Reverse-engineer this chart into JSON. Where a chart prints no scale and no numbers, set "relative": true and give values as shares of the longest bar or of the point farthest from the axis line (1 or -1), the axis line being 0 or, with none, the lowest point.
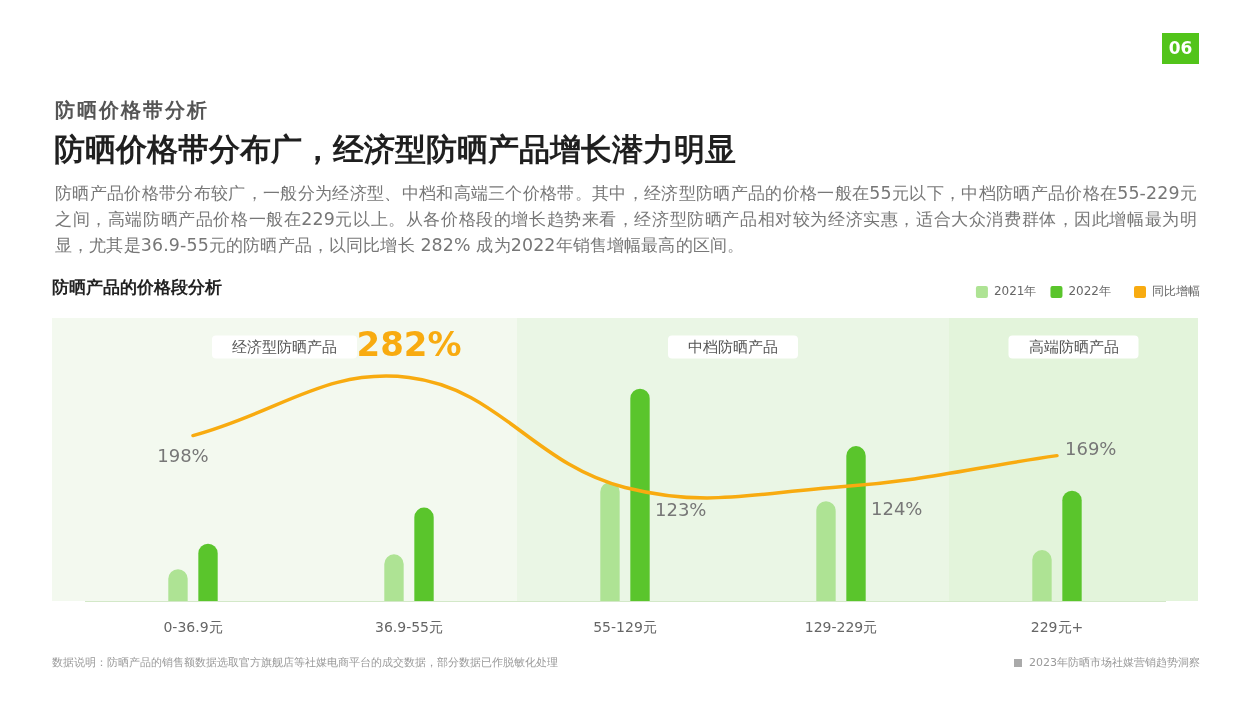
{
  "chart_data": [
    {
      "type": "bar",
      "title": "防晒价格带分布广，经济型防晒产品增长潜力明显",
      "subtitle": "防晒产品价格带分布较广，一般分为经济型、中档和高端三个价格带。其中，经济型防晒产品的价格一般在55元以下，中档防晒产品价格在55-229元之间，高端防晒产品价格一般在229元以上。从各价格段的增长趋势来看，经济型防晒产品相对较为经济实惠，适合大众消费群体，因此增幅最为明显，尤其是36.9-55元的防晒产品，以同比增长 282% 成为2022年销售增幅最高的区间。",
      "annotations": [
        "防晒价格带分析",
        "防晒产品的价格段分析",
        "06",
        "数据说明：防晒产品的销售额数据选取官方旗舰店等社媒电商平台的成交数据，部分数据已作脱敏化处理",
        "2023年防晒市场社媒营销趋势洞察"
      ],
      "categories": [
        "0-36.9元",
        "36.9-55元",
        "55-129元",
        "129-229元",
        "229元+"
      ],
      "relative": true,
      "series": [
        {
          "name": "2021年",
          "color": "#aee394",
          "values": [
            0.15,
            0.22,
            0.56,
            0.47,
            0.24
          ]
        },
        {
          "name": "2022年",
          "color": "#5ac52c",
          "values": [
            0.27,
            0.44,
            1,
            0.73,
            0.52
          ]
        }
      ],
      "bands": [
        {
          "axis": "x",
          "from": "0-36.9元",
          "to": "36.9-55元",
          "label": "经济型防晒产品",
          "color": "#f3f9ef"
        },
        {
          "axis": "x",
          "from": "55-129元",
          "to": "129-229元",
          "label": "中档防晒产品",
          "color": "#eaf6e5"
        },
        {
          "axis": "x",
          "from": "229元+",
          "to": "229元+",
          "label": "高端防晒产品",
          "color": "#e3f4db"
        }
      ],
      "legend": "top right"
    },
    {
      "type": "line",
      "categories": [
        null,
        null,
        null,
        null,
        null
      ],
      "series": [
        {
          "name": "同比增幅",
          "color": "#f8ab10",
          "values": [
            198,
            282,
            123,
            124,
            169
          ],
          "value_labels": [
            "198%",
            "282%",
            "123%",
            "124%",
            "169%"
          ]
        }
      ],
      "legend": "top right",
      "marker": "none"
    }
  ]
}
